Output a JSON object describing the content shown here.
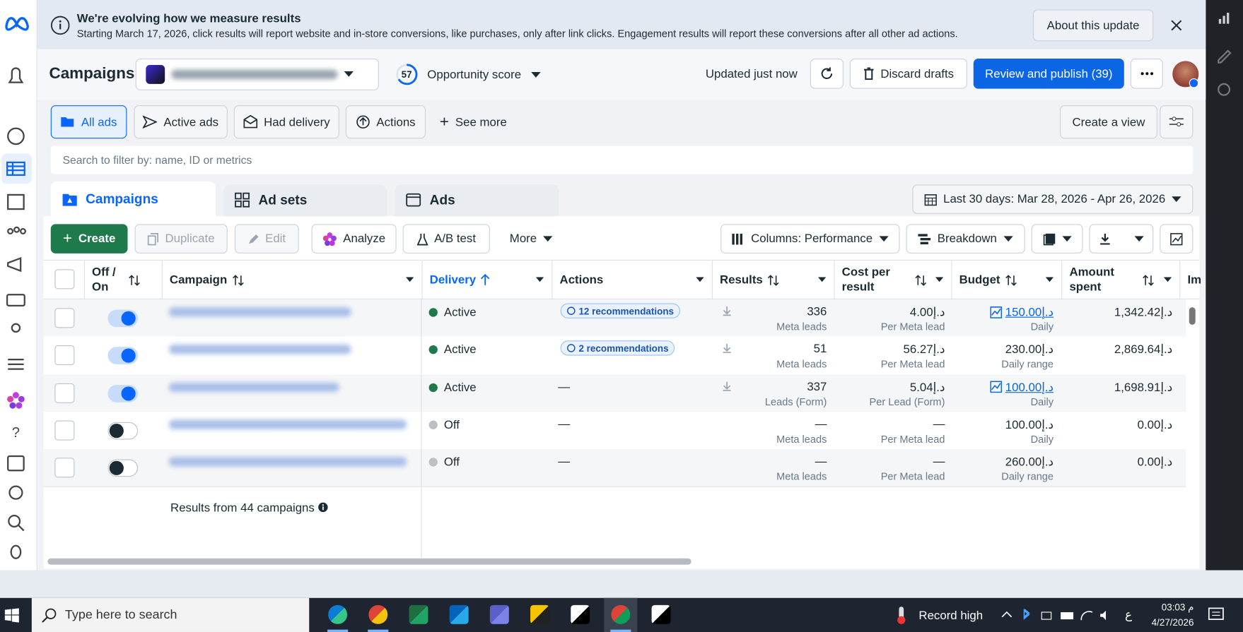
{
  "banner": {
    "title": "We're evolving how we measure results",
    "text": "Starting March 17, 2026, click results will report website and in-store conversions, like purchases, only after link clicks. Engagement results will report these conversions after all other ad actions.",
    "button": "About this update"
  },
  "header": {
    "title": "Campaigns",
    "opportunity_score": 57,
    "opportunity_label": "Opportunity score",
    "status": "Updated just now",
    "discard": "Discard drafts",
    "publish": "Review and publish (39)"
  },
  "filters": {
    "tabs": [
      "All ads",
      "Active ads",
      "Had delivery",
      "Actions"
    ],
    "see_more": "See more",
    "create_view": "Create a view",
    "search_placeholder": "Search to filter by: name, ID or metrics"
  },
  "level_tabs": [
    "Campaigns",
    "Ad sets",
    "Ads"
  ],
  "date_range": "Last 30 days: Mar 28, 2026 - Apr 26, 2026",
  "toolbar": {
    "create": "Create",
    "duplicate": "Duplicate",
    "edit": "Edit",
    "analyze": "Analyze",
    "ab_test": "A/B test",
    "more": "More",
    "columns": "Columns: Performance",
    "breakdown": "Breakdown"
  },
  "table": {
    "headers": [
      "Off / On",
      "Campaign",
      "Delivery",
      "Actions",
      "Results",
      "Cost per result",
      "Budget",
      "Amount spent",
      "Im"
    ],
    "rows": [
      {
        "on": true,
        "delivery": "Active",
        "actions": "12 recommendations",
        "results": 336,
        "results_type": "Meta leads",
        "cost": "4.00د.إ",
        "cost_type": "Per Meta lead",
        "budget": "150.00د.إ",
        "budget_type": "Daily",
        "budget_chart": true,
        "spent": "1,342.42د.إ"
      },
      {
        "on": true,
        "delivery": "Active",
        "actions": "2 recommendations",
        "results": 51,
        "results_type": "Meta leads",
        "cost": "56.27د.إ",
        "cost_type": "Per Meta lead",
        "budget": "230.00د.إ",
        "budget_type": "Daily range",
        "budget_chart": false,
        "spent": "2,869.64د.إ"
      },
      {
        "on": true,
        "delivery": "Active",
        "actions": "—",
        "results": 337,
        "results_type": "Leads (Form)",
        "cost": "5.04د.إ",
        "cost_type": "Per Lead (Form)",
        "budget": "100.00د.إ",
        "budget_type": "Daily",
        "budget_chart": true,
        "spent": "1,698.91د.إ"
      },
      {
        "on": false,
        "delivery": "Off",
        "actions": "—",
        "results": "—",
        "results_type": "Meta leads",
        "cost": "—",
        "cost_type": "Per Meta lead",
        "budget": "100.00د.إ",
        "budget_type": "Daily",
        "budget_chart": false,
        "spent": "0.00د.إ"
      },
      {
        "on": false,
        "delivery": "Off",
        "actions": "—",
        "results": "—",
        "results_type": "Meta leads",
        "cost": "—",
        "cost_type": "Per Meta lead",
        "budget": "260.00د.إ",
        "budget_type": "Daily range",
        "budget_chart": false,
        "spent": "0.00د.إ"
      }
    ],
    "footer": "Results from 44 campaigns"
  },
  "taskbar": {
    "search": "Type here to search",
    "weather": "Record high",
    "lang": "ع",
    "time": "03:03 م",
    "date": "4/27/2026"
  }
}
